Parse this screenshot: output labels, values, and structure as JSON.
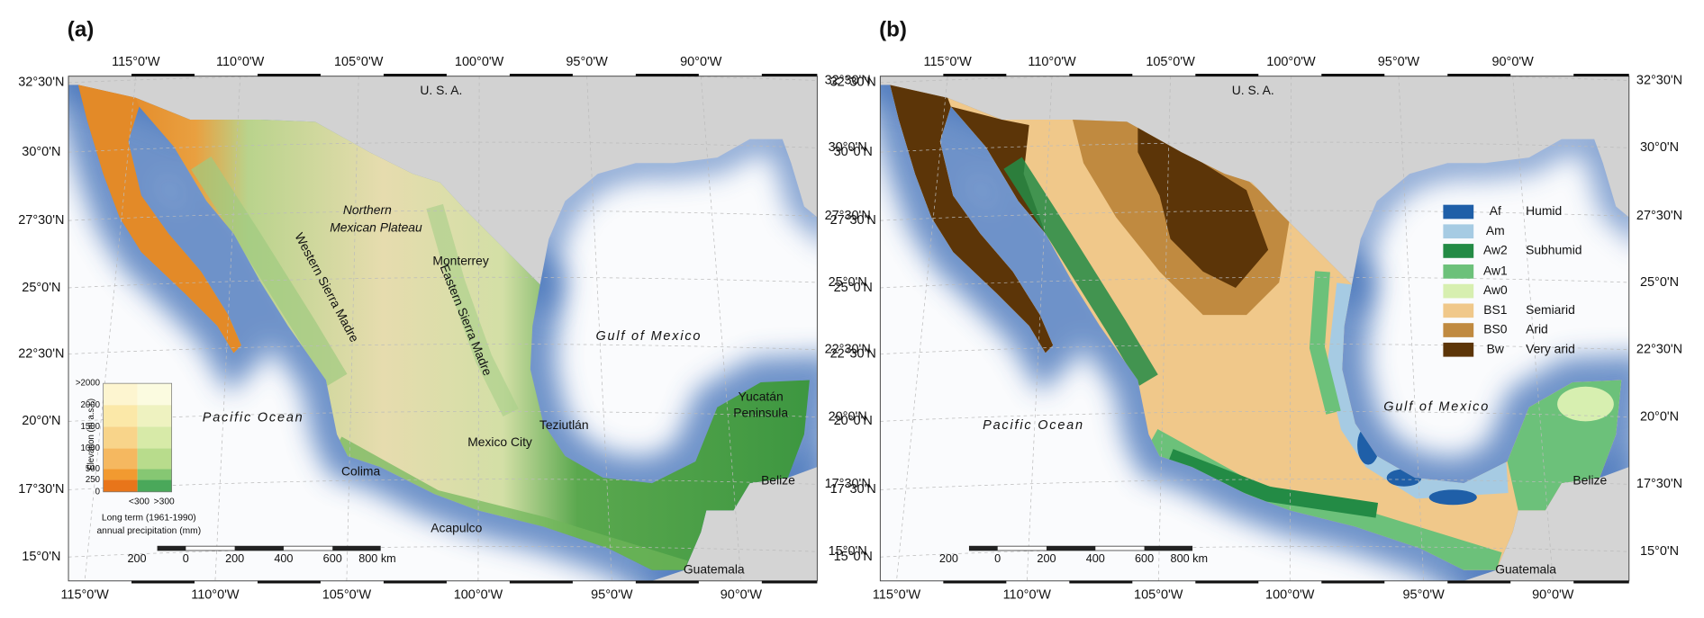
{
  "panels": [
    {
      "label": "(a)",
      "lon_top": [
        "115°0'W",
        "110°0'W",
        "105°0'W",
        "100°0'W",
        "95°0'W",
        "90°0'W"
      ],
      "lon_bottom": [
        "115°0'W",
        "110°0'W",
        "105°0'W",
        "100°0'W",
        "95°0'W",
        "90°0'W"
      ],
      "lat_left": [
        "32°30'N",
        "30°0'N",
        "27°30'N",
        "25°0'N",
        "22°30'N",
        "20°0'N",
        "17°30'N",
        "15°0'N"
      ],
      "lat_right": [
        "32°30'N",
        "30°0'N",
        "27°30'N",
        "25°0'N",
        "22°30'N",
        "20°0'N",
        "17°30'N",
        "15°0'N"
      ],
      "places": [
        "U. S. A.",
        "Northern",
        "Mexican Plateau",
        "Western Sierra Madre",
        "Eastern Sierra Madre",
        "Monterrey",
        "Gulf of Mexico",
        "Pacific Ocean",
        "Yucatán",
        "Peninsula",
        "Teziutlán",
        "Mexico City",
        "Colima",
        "Acapulco",
        "Belize",
        "Guatemala"
      ],
      "legend": {
        "title": "Elevation (m a.s.l.)",
        "levels": [
          ">2000",
          "2000",
          "1500",
          "1000",
          "500",
          "250",
          "0"
        ],
        "precipitation": [
          "<300",
          ">300"
        ],
        "caption": [
          "Long term (1961-1990)",
          "annual precipitation (mm)"
        ]
      },
      "scale_bar": [
        "200",
        "0",
        "200",
        "400",
        "600",
        "800 km"
      ]
    },
    {
      "label": "(b)",
      "lon_top": [
        "115°0'W",
        "110°0'W",
        "105°0'W",
        "100°0'W",
        "95°0'W",
        "90°0'W"
      ],
      "lon_bottom": [
        "115°0'W",
        "110°0'W",
        "105°0'W",
        "100°0'W",
        "95°0'W",
        "90°0'W"
      ],
      "lat_left": [
        "32°30'N",
        "30°0'N",
        "27°30'N",
        "25°0'N",
        "22°30'N",
        "20°0'N",
        "17°30'N",
        "15°0'N"
      ],
      "lat_right": [
        "32°30'N",
        "30°0'N",
        "27°30'N",
        "25°0'N",
        "22°30'N",
        "20°0'N",
        "17°30'N",
        "15°0'N"
      ],
      "places": [
        "U. S. A.",
        "Gulf of Mexico",
        "Pacific Ocean",
        "Belize",
        "Guatemala"
      ],
      "legend": {
        "classes": [
          {
            "code": "Af",
            "group": "Humid",
            "color": "#1f5fa8"
          },
          {
            "code": "Am",
            "color": "#a6cbe3"
          },
          {
            "code": "Aw2",
            "group": "Subhumid",
            "color": "#238b45"
          },
          {
            "code": "Aw1",
            "color": "#6cc17a"
          },
          {
            "code": "Aw0",
            "color": "#d7efb0"
          },
          {
            "code": "BS1",
            "group": "Semiarid",
            "color": "#f0c88a"
          },
          {
            "code": "BS0",
            "group": "Arid",
            "color": "#c08a40"
          },
          {
            "code": "Bw",
            "group": "Very arid",
            "color": "#5c3508"
          }
        ]
      },
      "scale_bar": [
        "200",
        "0",
        "200",
        "400",
        "600",
        "800 km"
      ]
    }
  ]
}
